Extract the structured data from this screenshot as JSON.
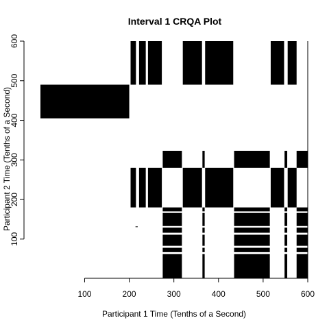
{
  "chart_data": {
    "type": "heatmap",
    "subtype": "cross-recurrence plot",
    "title": "Interval 1 CRQA Plot",
    "xlabel": "Participant 1 Time (Tenths of a Second)",
    "ylabel": "Participant 2 Time (Tenths of a Second)",
    "xlim": [
      1,
      600
    ],
    "ylim": [
      1,
      600
    ],
    "x_ticks": [
      100,
      200,
      300,
      400,
      500,
      600
    ],
    "y_ticks": [
      100,
      200,
      300,
      400,
      500,
      600
    ],
    "grid": false,
    "color": "#000000",
    "recurrence_regions": [
      {
        "x": [
          0,
          200
        ],
        "y": [
          405,
          490
        ]
      },
      {
        "x": [
          203,
          215
        ],
        "y": [
          490,
          600
        ]
      },
      {
        "x": [
          222,
          237
        ],
        "y": [
          490,
          600
        ]
      },
      {
        "x": [
          242,
          273
        ],
        "y": [
          490,
          600
        ]
      },
      {
        "x": [
          320,
          363
        ],
        "y": [
          490,
          600
        ]
      },
      {
        "x": [
          370,
          433
        ],
        "y": [
          490,
          600
        ]
      },
      {
        "x": [
          517,
          547
        ],
        "y": [
          490,
          600
        ]
      },
      {
        "x": [
          555,
          575
        ],
        "y": [
          490,
          600
        ]
      },
      {
        "x": [
          203,
          215
        ],
        "y": [
          180,
          280
        ]
      },
      {
        "x": [
          222,
          237
        ],
        "y": [
          180,
          280
        ]
      },
      {
        "x": [
          242,
          273
        ],
        "y": [
          180,
          280
        ]
      },
      {
        "x": [
          320,
          363
        ],
        "y": [
          180,
          280
        ]
      },
      {
        "x": [
          370,
          433
        ],
        "y": [
          180,
          280
        ]
      },
      {
        "x": [
          517,
          547
        ],
        "y": [
          180,
          280
        ]
      },
      {
        "x": [
          555,
          575
        ],
        "y": [
          180,
          280
        ]
      },
      {
        "x": [
          275,
          318
        ],
        "y": [
          280,
          323
        ]
      },
      {
        "x": [
          364,
          369
        ],
        "y": [
          280,
          323
        ]
      },
      {
        "x": [
          435,
          515
        ],
        "y": [
          280,
          323
        ]
      },
      {
        "x": [
          548,
          554
        ],
        "y": [
          280,
          323
        ]
      },
      {
        "x": [
          575,
          600
        ],
        "y": [
          280,
          323
        ]
      },
      {
        "x": [
          275,
          318
        ],
        "y": [
          0,
          180
        ]
      },
      {
        "x": [
          364,
          369
        ],
        "y": [
          0,
          180
        ]
      },
      {
        "x": [
          435,
          515
        ],
        "y": [
          0,
          180
        ]
      },
      {
        "x": [
          548,
          554
        ],
        "y": [
          0,
          180
        ]
      },
      {
        "x": [
          575,
          600
        ],
        "y": [
          0,
          180
        ]
      },
      {
        "x": [
          214,
          219
        ],
        "y": [
          131,
          132
        ]
      }
    ],
    "gaps": [
      {
        "y": [
          166,
          170
        ]
      },
      {
        "y": [
          129,
          133
        ]
      },
      {
        "y": [
          111,
          116
        ]
      },
      {
        "y": [
          78,
          83
        ]
      },
      {
        "y": [
          62,
          67
        ]
      }
    ]
  }
}
